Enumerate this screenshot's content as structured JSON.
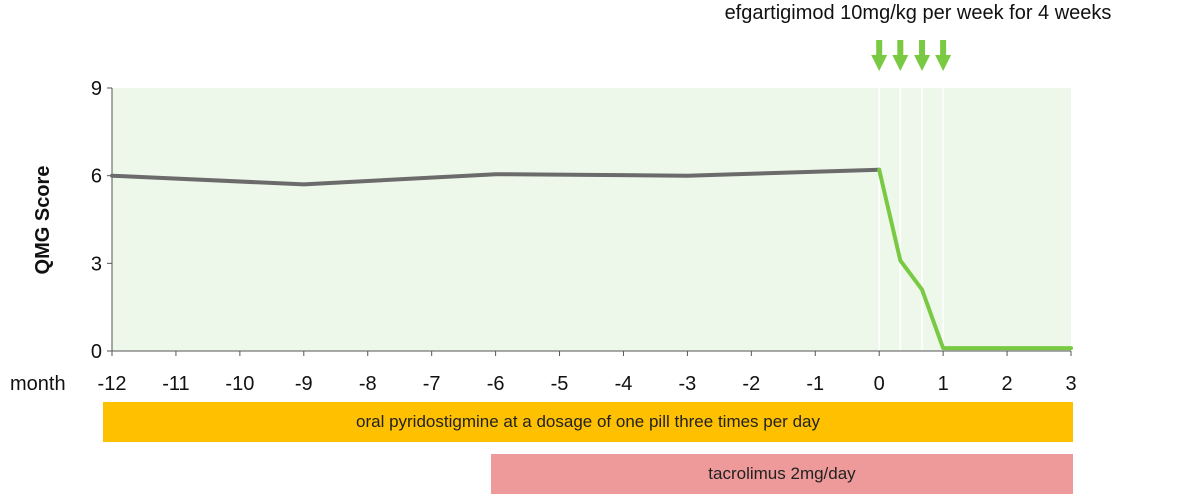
{
  "chart_data": {
    "type": "line",
    "title": "",
    "ylabel": "QMG Score",
    "xlabel": "month",
    "ylim": [
      0,
      9
    ],
    "xlim": [
      -12,
      3
    ],
    "yticks": [
      "0",
      "3",
      "6",
      "9"
    ],
    "xticks": [
      "-12",
      "-11",
      "-10",
      "-9",
      "-8",
      "-7",
      "-6",
      "-5",
      "-4",
      "-3",
      "-2",
      "-1",
      "0",
      "1",
      "2",
      "3"
    ],
    "grid": false,
    "series": [
      {
        "color": "#6b6b6b",
        "x": [
          -12,
          -9,
          -6,
          -3,
          0
        ],
        "y": [
          6.0,
          5.7,
          6.05,
          6.0,
          6.2
        ]
      },
      {
        "color": "#7ac943",
        "x": [
          0,
          0.33,
          0.67,
          1,
          3
        ],
        "y": [
          6.2,
          3.1,
          2.1,
          0.1,
          0.1
        ]
      }
    ],
    "annotation": {
      "text": "efgartigimod 10mg/kg per week for 4 weeks",
      "arrows_at": [
        0,
        0.33,
        0.67,
        1
      ],
      "arrow_color": "#7ac943"
    },
    "shaded_background": "#eef8ea",
    "treatment_bars": [
      {
        "label": "oral pyridostigmine at a dosage of one pill three times per day",
        "start": -12,
        "end": 3,
        "color": "#ffc000"
      },
      {
        "label": "tacrolimus 2mg/day",
        "start": -6,
        "end": 3,
        "color": "#ee9a9a"
      }
    ]
  }
}
